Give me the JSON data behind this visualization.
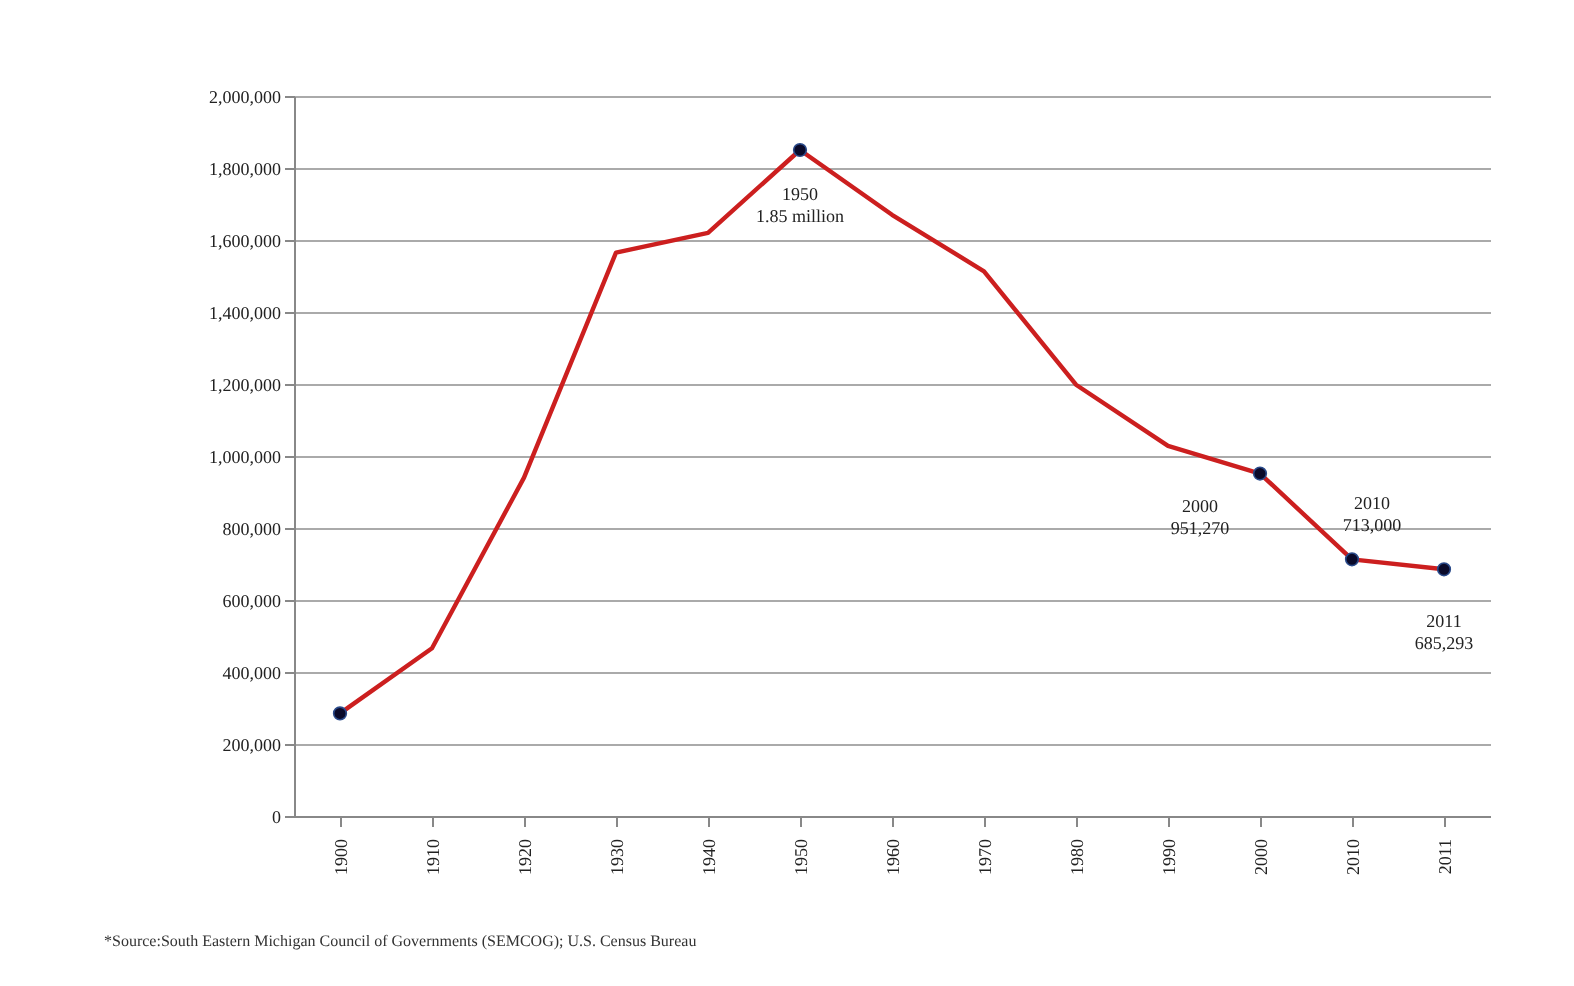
{
  "chart_data": {
    "type": "line",
    "categories": [
      "1900",
      "1910",
      "1920",
      "1930",
      "1940",
      "1950",
      "1960",
      "1970",
      "1980",
      "1990",
      "2000",
      "2010",
      "2011"
    ],
    "series": [
      {
        "color": "#cc1f1f",
        "values": [
          285000,
          466000,
          940000,
          1565000,
          1620000,
          1850000,
          1670000,
          1513000,
          1198000,
          1028000,
          951270,
          713000,
          685293
        ]
      },
      {
        "type": "scatter",
        "color": "#0a0a2a",
        "marker": "circle",
        "values": [
          285000,
          null,
          null,
          null,
          null,
          1850000,
          null,
          null,
          null,
          null,
          951270,
          713000,
          685293
        ]
      }
    ],
    "ylim": [
      0,
      2000000
    ],
    "yticks": [
      0,
      {
        "value": 200000,
        "label": "200,000"
      },
      {
        "value": 400000,
        "label": "400,000"
      },
      {
        "value": 600000,
        "label": "600,000"
      },
      {
        "value": 800000,
        "label": "800,000"
      },
      {
        "value": 1000000,
        "label": "1,000,000"
      },
      {
        "value": 1200000,
        "label": "1,200,000"
      },
      {
        "value": 1400000,
        "label": "1,400,000"
      },
      {
        "value": 1600000,
        "label": "1,600,000"
      },
      {
        "value": 1800000,
        "label": "1,800,000"
      },
      {
        "value": 2000000,
        "label": "2,000,000"
      }
    ],
    "grid": "y",
    "annotations": [
      {
        "text": "1950\n1.85 million",
        "x": "1950",
        "y": 1850000
      },
      {
        "text": "2000\n951,270",
        "x": "2000",
        "y": 951270
      },
      {
        "text": "2010\n713,000",
        "x": "2010",
        "y": 713000
      },
      {
        "text": "2011\n685,293",
        "x": "2011",
        "y": 685293
      },
      "*Source:South Eastern Michigan Council of Governments (SEMCOG); U.S. Census Bureau"
    ]
  }
}
